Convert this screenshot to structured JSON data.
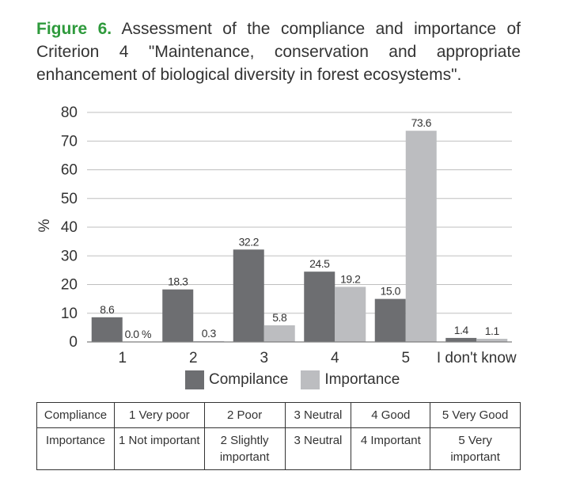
{
  "caption": {
    "label": "Figure 6.",
    "text": "Assessment of the compliance and importance of Criterion 4 \"Maintenance, conservation and appropriate enhancement of biological diversity in forest ecosystems\"."
  },
  "chart_data": {
    "type": "bar",
    "title": "",
    "xlabel": "",
    "ylabel": "%",
    "ylim": [
      0,
      80
    ],
    "yticks": [
      0,
      10,
      20,
      30,
      40,
      50,
      60,
      70,
      80
    ],
    "grid": true,
    "categories": [
      "1",
      "2",
      "3",
      "4",
      "5",
      "I don't know"
    ],
    "series": [
      {
        "name": "Compilance",
        "color": "#6d6e71",
        "values": [
          8.6,
          18.3,
          32.2,
          24.5,
          15.0,
          1.4
        ],
        "labels": [
          "8.6",
          "18.3",
          "32.2",
          "24.5",
          "15.0",
          "1.4"
        ]
      },
      {
        "name": "Importance",
        "color": "#bcbdc0",
        "values": [
          0.0,
          0.3,
          5.8,
          19.2,
          73.6,
          1.1
        ],
        "labels": [
          "0.0 %",
          "0.3",
          "5.8",
          "19.2",
          "73.6",
          "1.1"
        ]
      }
    ],
    "legend_position": "bottom"
  },
  "scale_table": [
    [
      "Compliance",
      "1 Very poor",
      "2 Poor",
      "3 Neutral",
      "4 Good",
      "5 Very Good"
    ],
    [
      "Importance",
      "1 Not important",
      "2 Slightly important",
      "3 Neutral",
      "4 Important",
      "5 Very important"
    ]
  ]
}
